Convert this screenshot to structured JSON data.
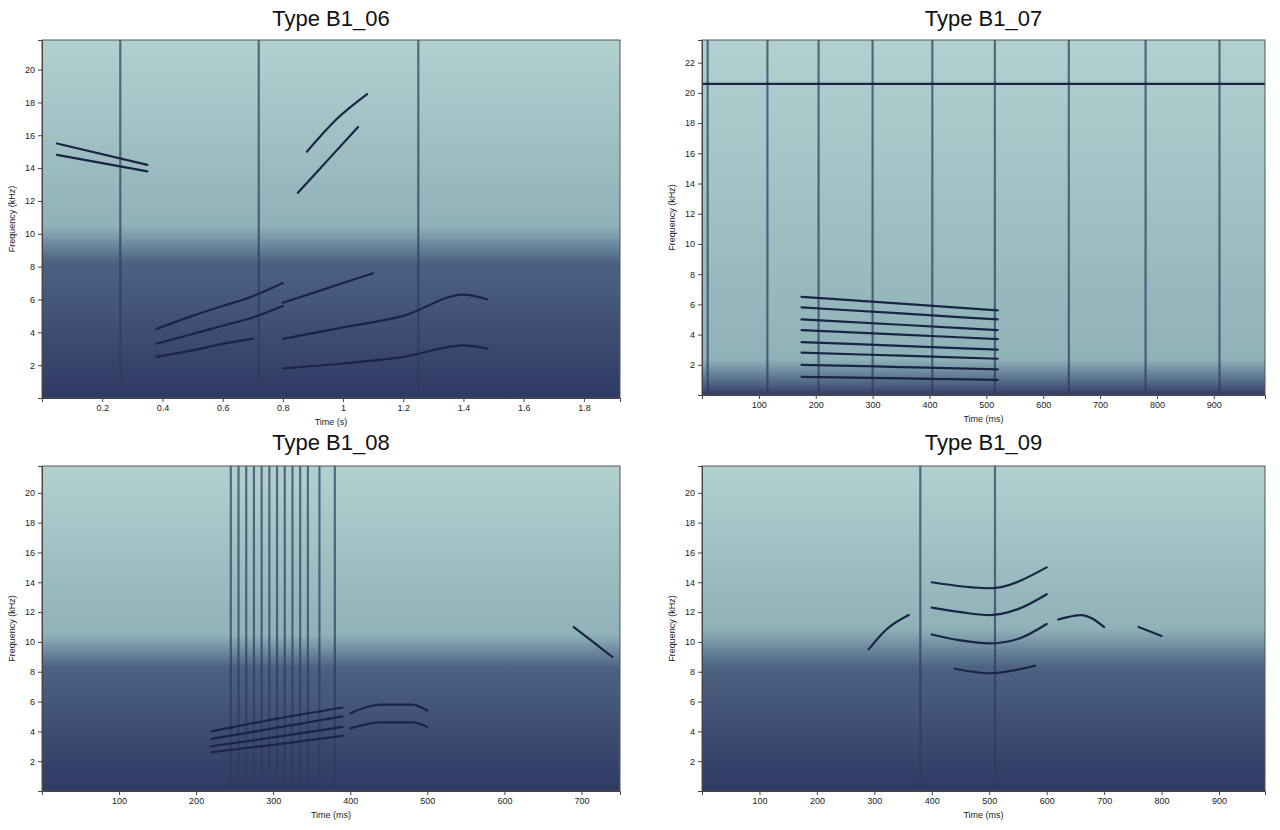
{
  "chart_data": [
    {
      "type": "spectrogram",
      "title": "Type B1_06",
      "x_label": "Time (s)",
      "y_label": "Frequency (kHz)",
      "xlim": [
        0,
        1.92
      ],
      "ylim": [
        0,
        21.8
      ],
      "xticks": [
        0.2,
        0.4,
        0.6,
        0.8,
        1,
        1.2,
        1.4,
        1.6,
        1.8
      ],
      "yticks": [
        2,
        4,
        6,
        8,
        10,
        12,
        14,
        16,
        18,
        20
      ],
      "series": [
        {
          "x": [
            0.8,
            1.0,
            1.2,
            1.4,
            1.48
          ],
          "values": [
            1.8,
            2.1,
            2.5,
            3.2,
            3.0
          ]
        },
        {
          "x": [
            0.8,
            1.0,
            1.2,
            1.4,
            1.48
          ],
          "values": [
            3.6,
            4.3,
            5.0,
            6.3,
            6.0
          ]
        },
        {
          "x": [
            0.38,
            0.5,
            0.6,
            0.7,
            0.8
          ],
          "values": [
            3.3,
            3.9,
            4.4,
            4.9,
            5.6
          ]
        },
        {
          "x": [
            0.38,
            0.5,
            0.6,
            0.7,
            0.8
          ],
          "values": [
            4.2,
            5.0,
            5.6,
            6.2,
            7.0
          ]
        },
        {
          "x": [
            0.38,
            0.5,
            0.6,
            0.7
          ],
          "values": [
            2.5,
            2.9,
            3.3,
            3.6
          ]
        },
        {
          "x": [
            0.8,
            1.0,
            1.1
          ],
          "values": [
            5.8,
            7.0,
            7.6
          ]
        },
        {
          "x": [
            0.85,
            0.95,
            1.05
          ],
          "values": [
            12.5,
            14.5,
            16.5
          ]
        },
        {
          "x": [
            0.88,
            0.98,
            1.08
          ],
          "values": [
            15.0,
            17.0,
            18.5
          ]
        },
        {
          "x": [
            0.05,
            0.35
          ],
          "values": [
            15.5,
            14.2
          ]
        },
        {
          "x": [
            0.05,
            0.35
          ],
          "values": [
            14.8,
            13.8
          ]
        }
      ],
      "clicks": [
        0.26,
        0.72,
        1.25
      ]
    },
    {
      "type": "spectrogram",
      "title": "Type B1_07",
      "x_label": "Time (ms)",
      "y_label": "Frequency (kHz)",
      "xlim": [
        0,
        990
      ],
      "ylim": [
        0,
        23.5
      ],
      "xticks": [
        100,
        200,
        300,
        400,
        500,
        600,
        700,
        800,
        900
      ],
      "yticks": [
        2,
        4,
        6,
        8,
        10,
        12,
        14,
        16,
        18,
        20,
        22
      ],
      "series": [
        {
          "x": [
            175,
            350,
            520
          ],
          "values": [
            1.2,
            1.1,
            1.0
          ]
        },
        {
          "x": [
            175,
            350,
            520
          ],
          "values": [
            2.0,
            1.85,
            1.7
          ]
        },
        {
          "x": [
            175,
            350,
            520
          ],
          "values": [
            2.8,
            2.6,
            2.4
          ]
        },
        {
          "x": [
            175,
            350,
            520
          ],
          "values": [
            3.5,
            3.25,
            3.0
          ]
        },
        {
          "x": [
            175,
            350,
            520
          ],
          "values": [
            4.3,
            4.0,
            3.7
          ]
        },
        {
          "x": [
            175,
            350,
            520
          ],
          "values": [
            5.0,
            4.65,
            4.3
          ]
        },
        {
          "x": [
            175,
            350,
            520
          ],
          "values": [
            5.8,
            5.4,
            5.0
          ]
        },
        {
          "x": [
            175,
            350,
            520
          ],
          "values": [
            6.5,
            6.05,
            5.6
          ]
        },
        {
          "x": [
            0,
            990
          ],
          "values": [
            20.6,
            20.6
          ]
        }
      ],
      "clicks": [
        10,
        115,
        205,
        300,
        405,
        515,
        645,
        780,
        910
      ]
    },
    {
      "type": "spectrogram",
      "title": "Type B1_08",
      "x_label": "Time (ms)",
      "y_label": "Frequency (kHz)",
      "xlim": [
        0,
        750
      ],
      "ylim": [
        0,
        21.8
      ],
      "xticks": [
        100,
        200,
        300,
        400,
        500,
        600,
        700
      ],
      "yticks": [
        2,
        4,
        6,
        8,
        10,
        12,
        14,
        16,
        18,
        20
      ],
      "series": [
        {
          "x": [
            220,
            300,
            390
          ],
          "values": [
            2.6,
            3.1,
            3.7
          ]
        },
        {
          "x": [
            220,
            300,
            390
          ],
          "values": [
            3.0,
            3.6,
            4.3
          ]
        },
        {
          "x": [
            220,
            300,
            390
          ],
          "values": [
            3.5,
            4.2,
            5.0
          ]
        },
        {
          "x": [
            220,
            300,
            390
          ],
          "values": [
            4.0,
            4.8,
            5.6
          ]
        },
        {
          "x": [
            400,
            440,
            480,
            500
          ],
          "values": [
            5.2,
            5.8,
            5.8,
            5.4
          ]
        },
        {
          "x": [
            400,
            440,
            480,
            500
          ],
          "values": [
            4.2,
            4.6,
            4.6,
            4.3
          ]
        },
        {
          "x": [
            690,
            715,
            740
          ],
          "values": [
            11.0,
            10.0,
            9.0
          ]
        }
      ],
      "clicks": [
        245,
        255,
        265,
        275,
        285,
        295,
        305,
        315,
        325,
        335,
        345,
        360,
        380
      ]
    },
    {
      "type": "spectrogram",
      "title": "Type B1_09",
      "x_label": "Time (ms)",
      "y_label": "Frequency (kHz)",
      "xlim": [
        0,
        980
      ],
      "ylim": [
        0,
        21.8
      ],
      "xticks": [
        100,
        200,
        300,
        400,
        500,
        600,
        700,
        800,
        900
      ],
      "yticks": [
        2,
        4,
        6,
        8,
        10,
        12,
        14,
        16,
        18,
        20
      ],
      "series": [
        {
          "x": [
            400,
            450,
            500,
            550,
            600
          ],
          "values": [
            10.5,
            10.1,
            9.9,
            10.2,
            11.2
          ]
        },
        {
          "x": [
            400,
            450,
            500,
            550,
            600
          ],
          "values": [
            12.3,
            12.0,
            11.8,
            12.2,
            13.2
          ]
        },
        {
          "x": [
            400,
            500,
            600
          ],
          "values": [
            14.0,
            13.6,
            15.0
          ]
        },
        {
          "x": [
            440,
            500,
            580
          ],
          "values": [
            8.2,
            7.9,
            8.4
          ]
        },
        {
          "x": [
            290,
            320,
            360
          ],
          "values": [
            9.5,
            10.8,
            11.8
          ]
        },
        {
          "x": [
            620,
            660,
            700
          ],
          "values": [
            11.5,
            11.8,
            11.0
          ]
        },
        {
          "x": [
            760,
            800
          ],
          "values": [
            11.0,
            10.4
          ]
        }
      ],
      "clicks": [
        380,
        510
      ]
    }
  ]
}
